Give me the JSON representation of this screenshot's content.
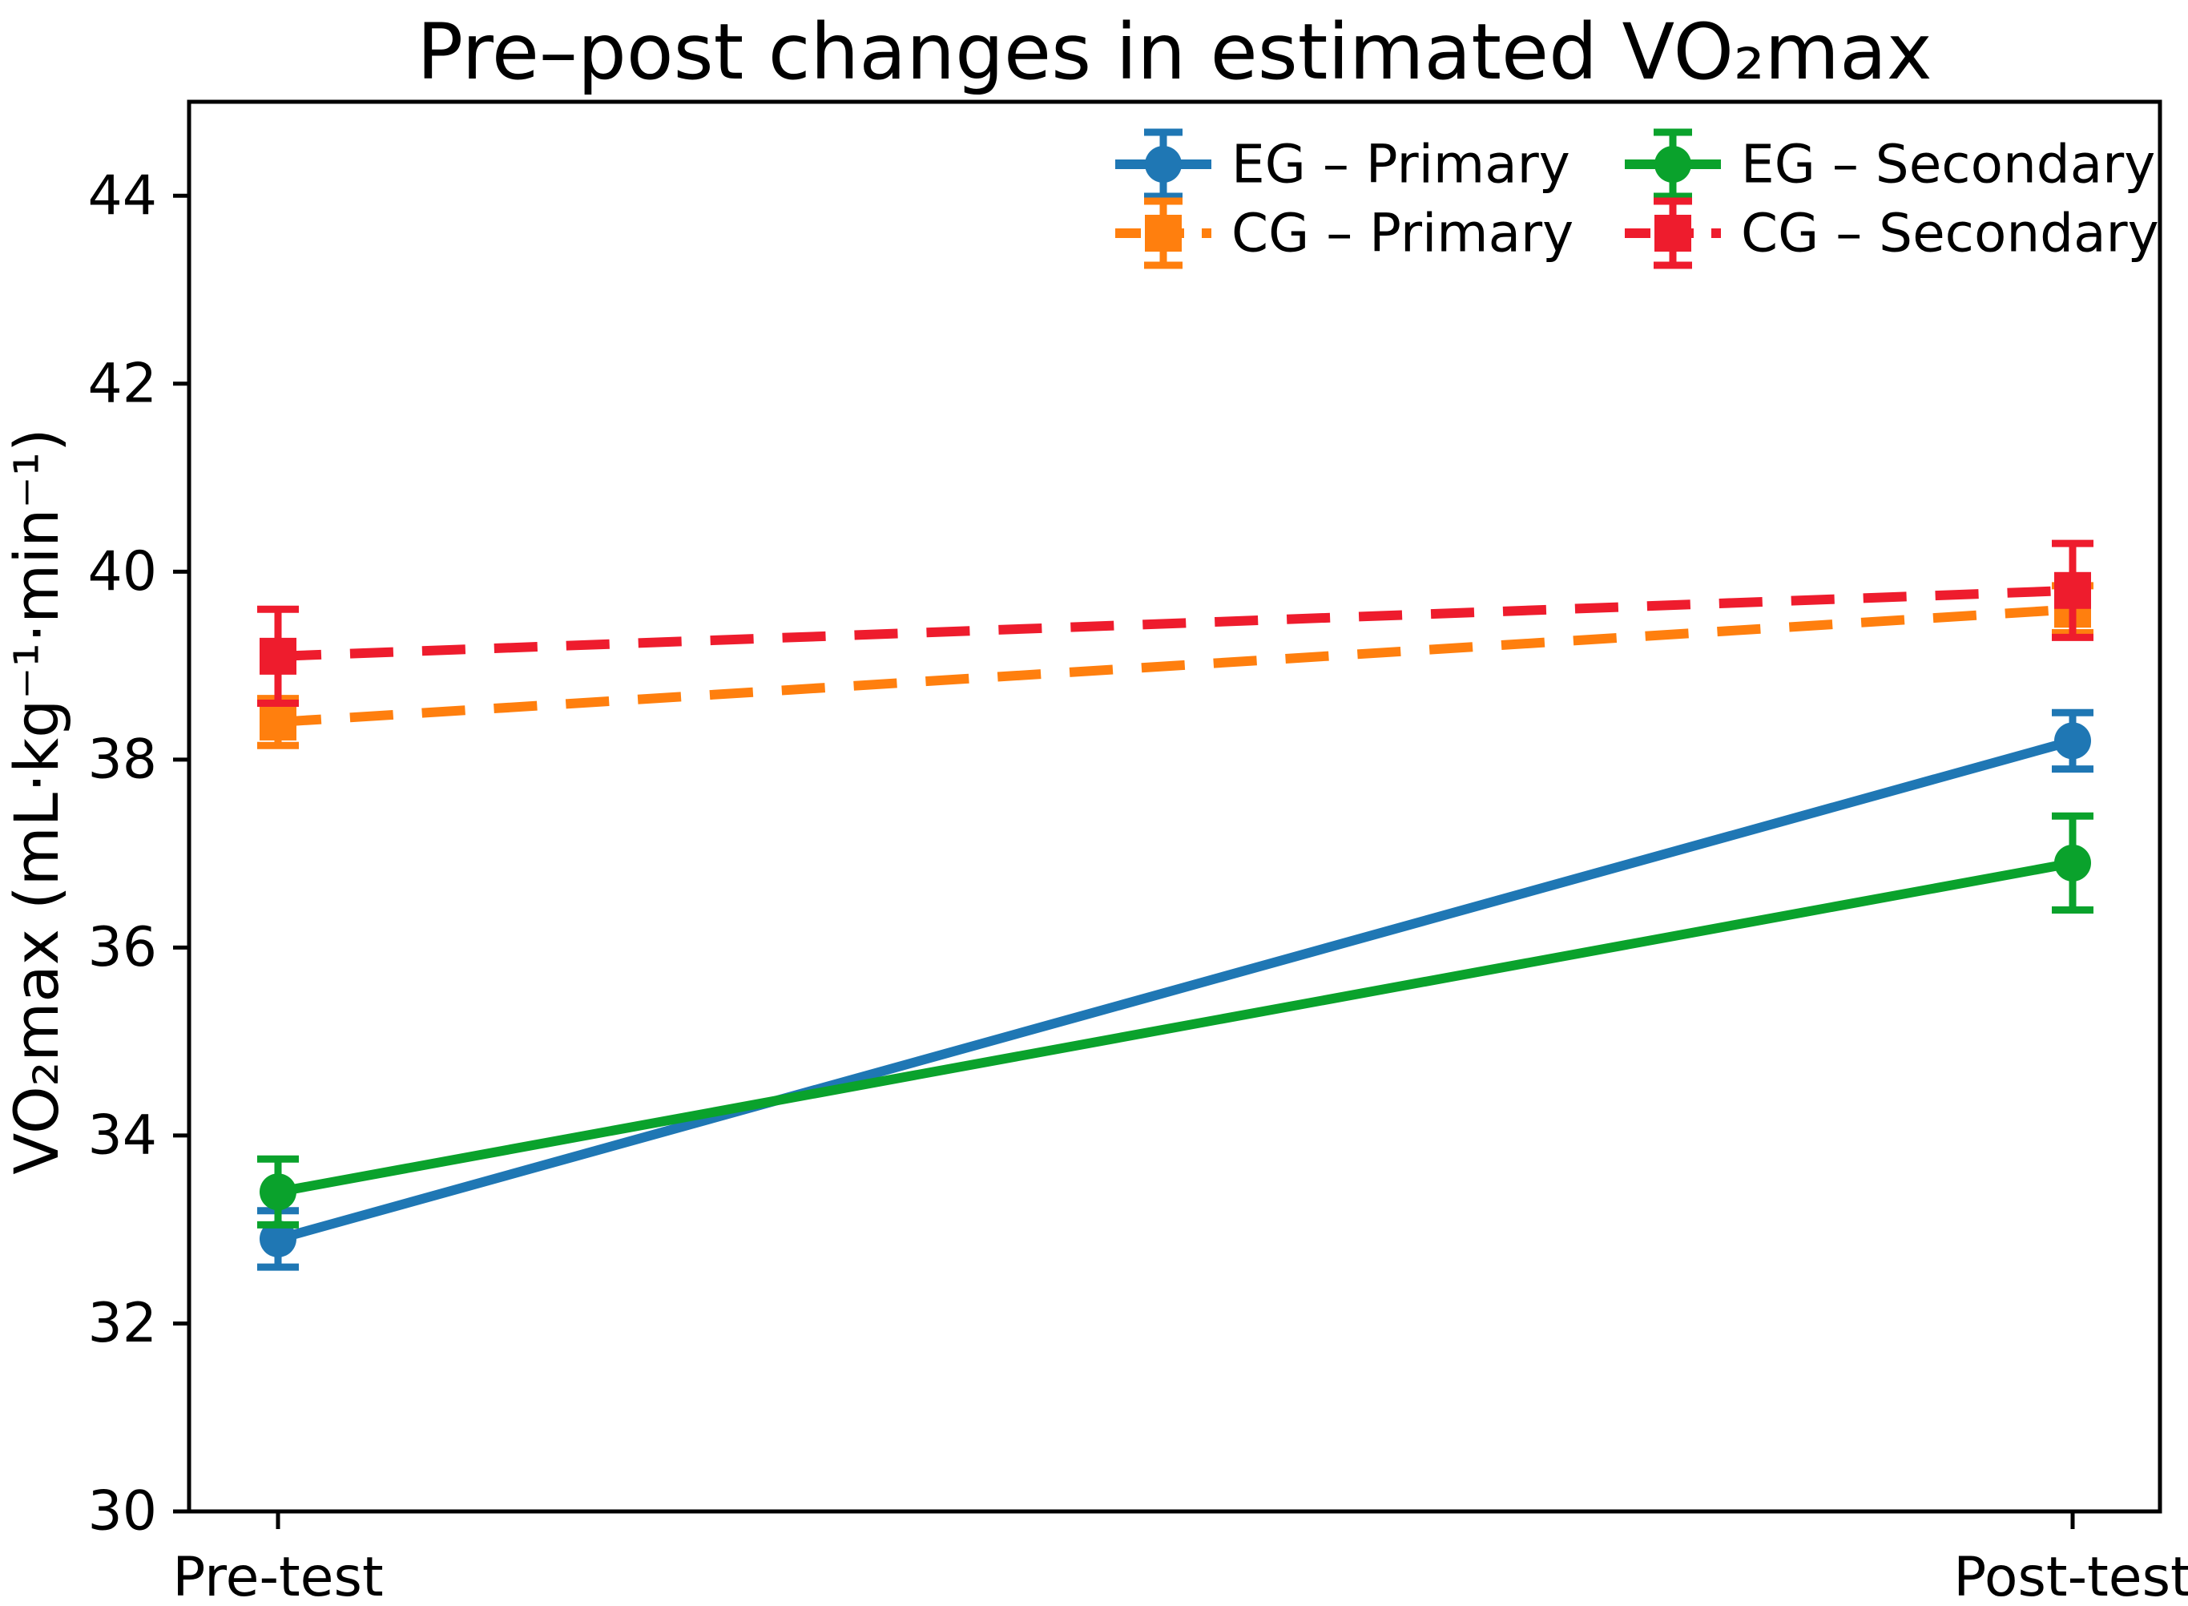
{
  "chart_data": {
    "type": "line",
    "title": "Pre–post changes in estimated VO₂max",
    "xlabel": "",
    "ylabel": "VO₂max (mL·kg⁻¹·min⁻¹)",
    "categories": [
      "Pre-test",
      "Post-test"
    ],
    "ylim": [
      30,
      45
    ],
    "yticks": [
      30,
      32,
      34,
      36,
      38,
      40,
      42,
      44
    ],
    "grid": false,
    "axis_color": "#000000",
    "background_color": "#ffffff",
    "legend": {
      "position": "upper-right-inside",
      "columns": 2,
      "frame": false,
      "column_order": [
        [
          "EG – Primary",
          "CG – Primary"
        ],
        [
          "EG – Secondary",
          "CG – Secondary"
        ]
      ]
    },
    "series": [
      {
        "name": "EG – Primary",
        "group": "EG",
        "outcome": "Primary",
        "color": "#1f77b4",
        "line_style": "solid",
        "marker": "circle",
        "values": [
          32.9,
          38.2
        ],
        "errors": [
          0.3,
          0.3
        ]
      },
      {
        "name": "CG – Primary",
        "group": "CG",
        "outcome": "Primary",
        "color": "#ff7f0e",
        "line_style": "dashed",
        "marker": "square",
        "values": [
          38.4,
          39.6
        ],
        "errors": [
          0.25,
          0.25
        ]
      },
      {
        "name": "EG – Secondary",
        "group": "EG",
        "outcome": "Secondary",
        "color": "#0aa22c",
        "line_style": "solid",
        "marker": "circle",
        "values": [
          33.4,
          36.9
        ],
        "errors": [
          0.35,
          0.5
        ]
      },
      {
        "name": "CG – Secondary",
        "group": "CG",
        "outcome": "Secondary",
        "color": "#ee1c2d",
        "line_style": "dashed",
        "marker": "square",
        "values": [
          39.1,
          39.8
        ],
        "errors": [
          0.5,
          0.5
        ]
      }
    ]
  }
}
